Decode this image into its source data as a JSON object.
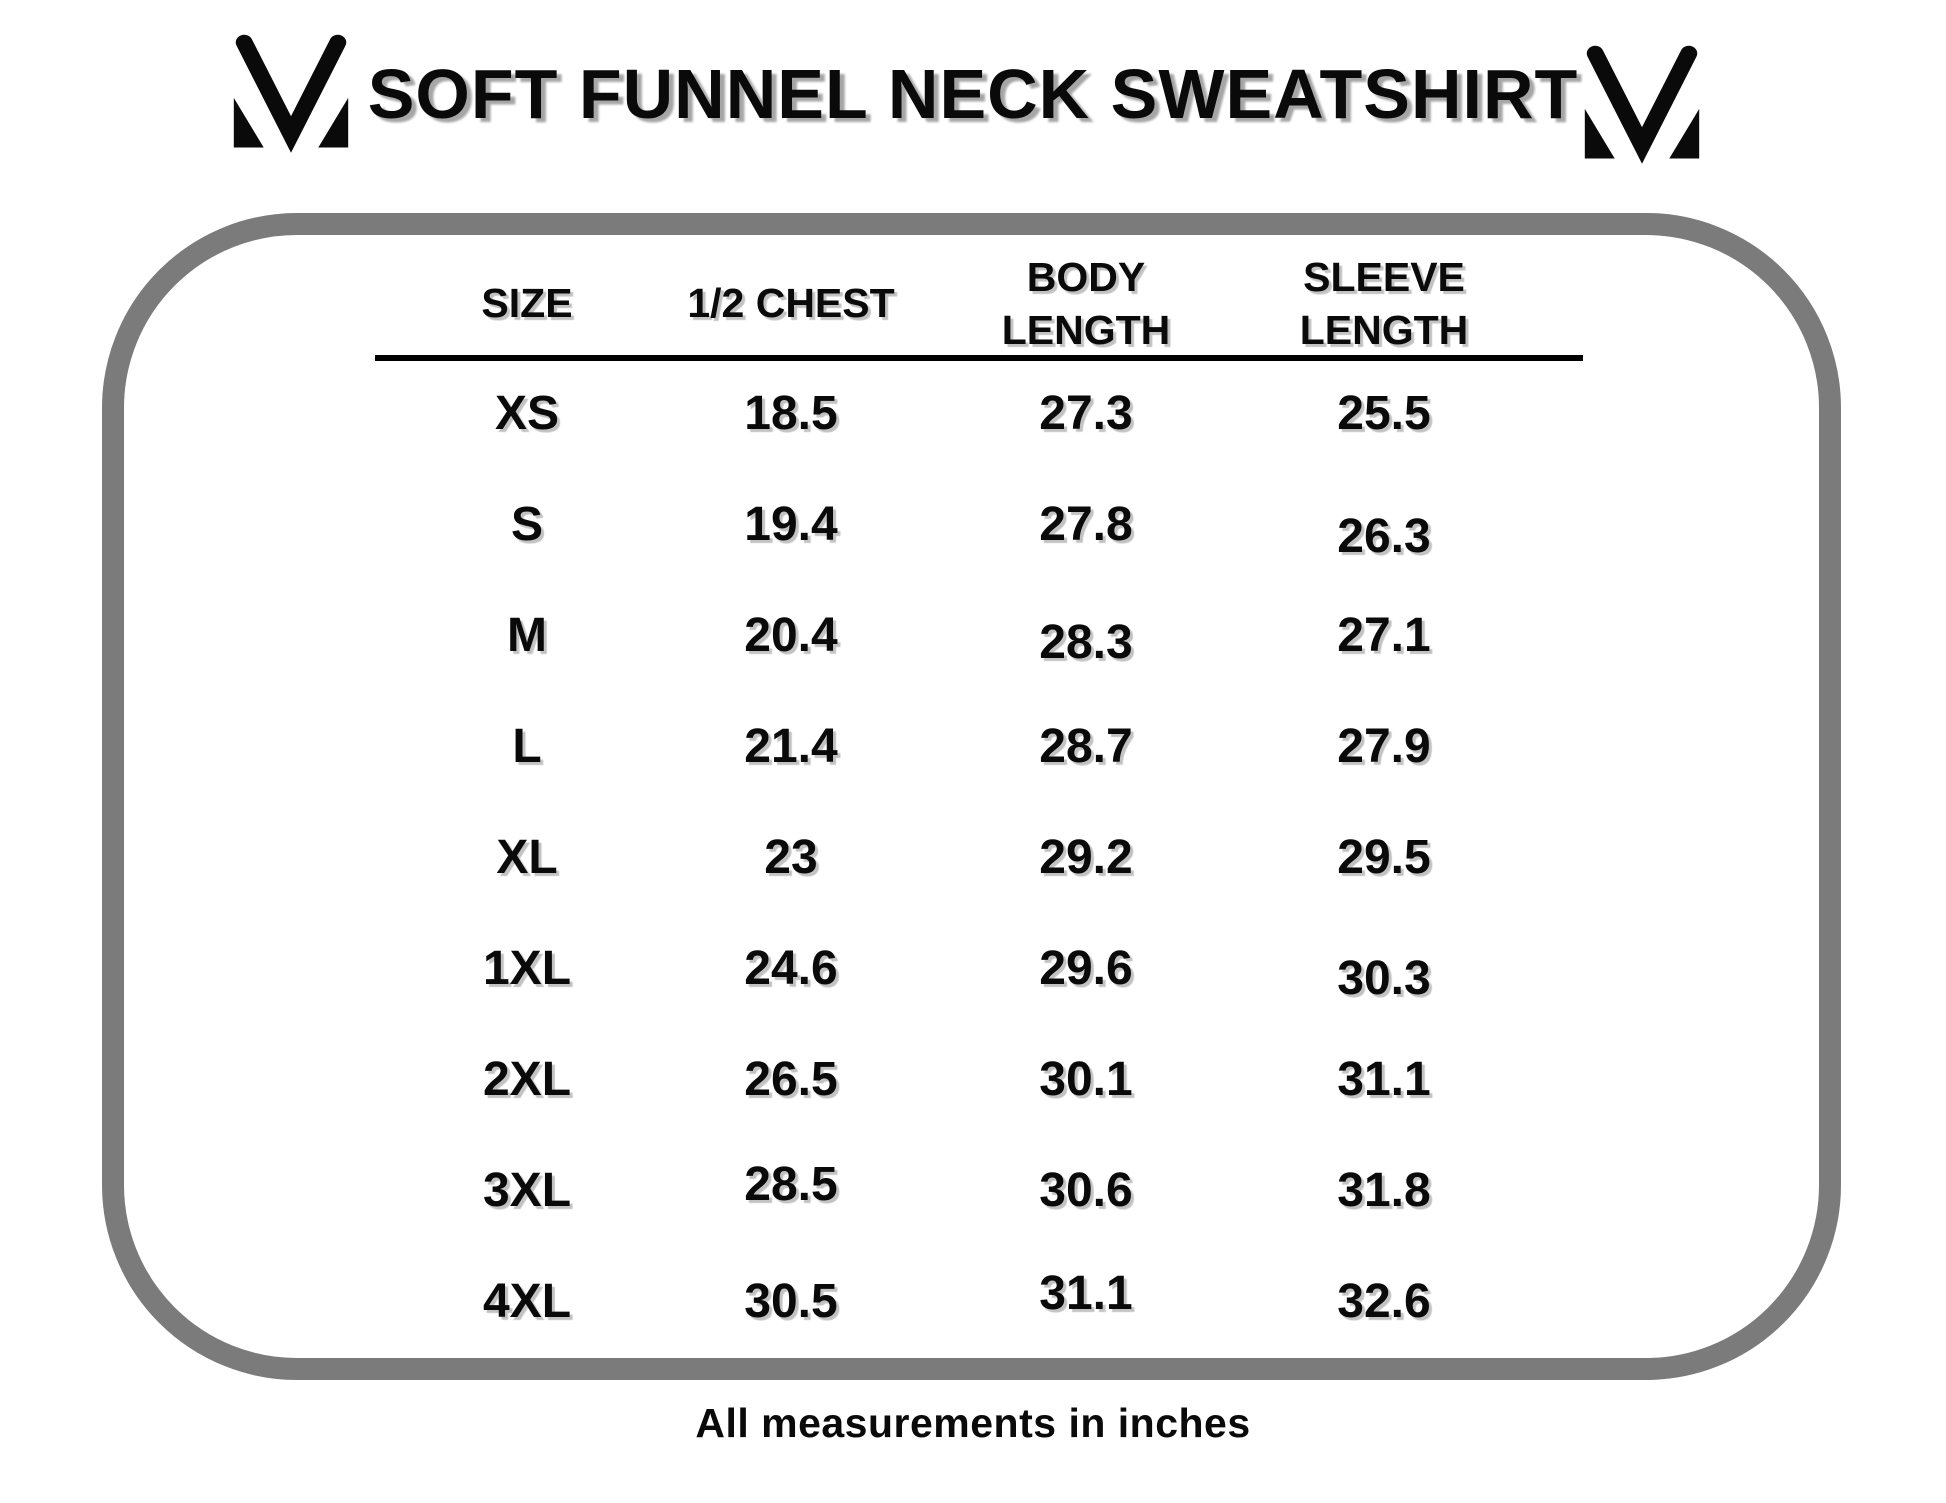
{
  "header": {
    "title": "SOFT FUNNEL NECK SWEATSHIRT",
    "logo_icon": "mv-monogram-icon"
  },
  "footnote": "All measurements in inches",
  "colors": {
    "background": "#ffffff",
    "text": "#0a0a0a",
    "panel_border": "#7b7b7b",
    "title_shadow": "#a6a6a6",
    "table_text_shadow": "#c2c2c2",
    "header_rule": "#000000"
  },
  "chart_data": {
    "type": "table",
    "title": "SOFT FUNNEL NECK SWEATSHIRT",
    "columns": [
      "SIZE",
      "1/2 CHEST",
      "BODY LENGTH",
      "SLEEVE LENGTH"
    ],
    "header_lines": [
      [
        "SIZE"
      ],
      [
        "1/2 CHEST"
      ],
      [
        "BODY",
        "LENGTH"
      ],
      [
        "SLEEVE",
        "LENGTH"
      ]
    ],
    "rows": [
      [
        "XS",
        "18.5",
        "27.3",
        "25.5"
      ],
      [
        "S",
        "19.4",
        "27.8",
        "26.3"
      ],
      [
        "M",
        "20.4",
        "28.3",
        "27.1"
      ],
      [
        "L",
        "21.4",
        "28.7",
        "27.9"
      ],
      [
        "XL",
        "23",
        "29.2",
        "29.5"
      ],
      [
        "1XL",
        "24.6",
        "29.6",
        "30.3"
      ],
      [
        "2XL",
        "26.5",
        "30.1",
        "31.1"
      ],
      [
        "3XL",
        "28.5",
        "30.6",
        "31.8"
      ],
      [
        "4XL",
        "30.5",
        "31.1",
        "32.6"
      ]
    ],
    "note": "All measurements in inches",
    "layout_hints": {
      "grid": "off",
      "header_rule": "on"
    }
  }
}
